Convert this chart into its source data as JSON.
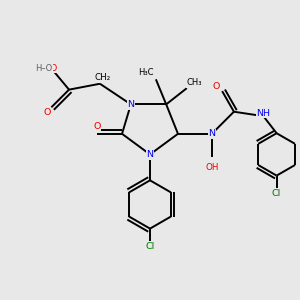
{
  "bg_color": "#e8e8e8",
  "atom_colors": {
    "C": "#000000",
    "N": "#0000ee",
    "O": "#ee0000",
    "Cl": "#007700",
    "H": "#606060"
  },
  "bond_color": "#000000",
  "bond_width": 1.4,
  "figsize": [
    3.0,
    3.0
  ],
  "dpi": 100,
  "xlim": [
    0,
    10
  ],
  "ylim": [
    0,
    10
  ]
}
